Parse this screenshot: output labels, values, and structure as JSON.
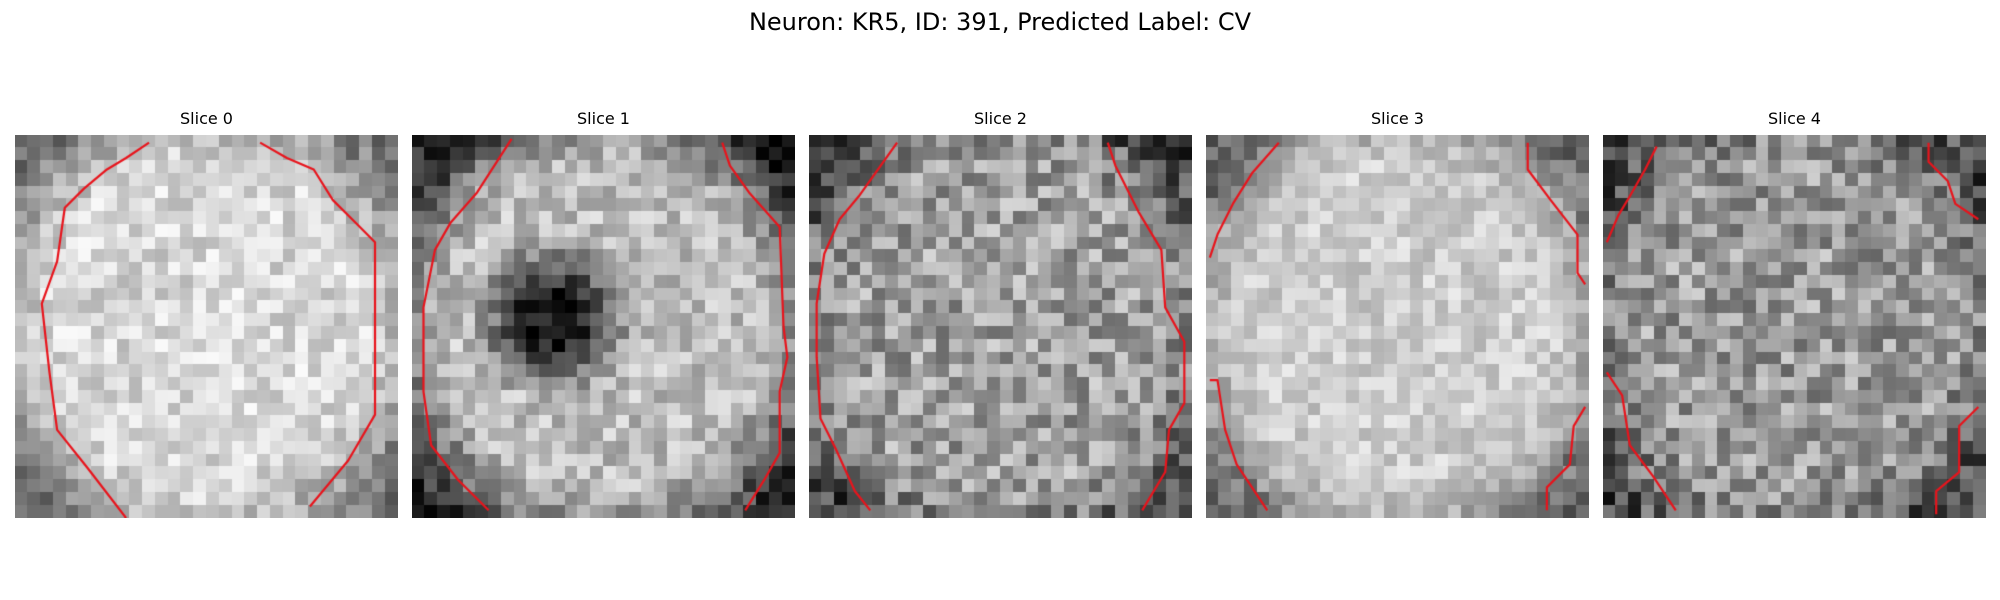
{
  "figure": {
    "title": "Neuron: KR5, ID: 391, Predicted Label: CV",
    "contour_color": "#e8141c"
  },
  "panels": [
    {
      "title": "Slice 0",
      "icon": "grayscale-microscopy-slice-with-red-contour"
    },
    {
      "title": "Slice 1",
      "icon": "grayscale-microscopy-slice-with-red-contour"
    },
    {
      "title": "Slice 2",
      "icon": "grayscale-microscopy-slice-with-red-contour"
    },
    {
      "title": "Slice 3",
      "icon": "grayscale-microscopy-slice-with-red-contour"
    },
    {
      "title": "Slice 4",
      "icon": "grayscale-microscopy-slice-with-red-contour"
    }
  ]
}
